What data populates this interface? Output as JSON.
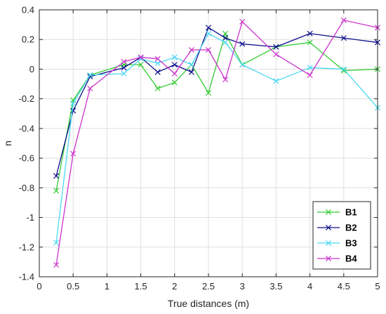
{
  "chart_data": {
    "type": "line",
    "title": "",
    "xlabel": "True distances (m)",
    "ylabel": "n",
    "xlim": [
      0,
      5
    ],
    "ylim": [
      -1.4,
      0.4
    ],
    "xticks": [
      0,
      0.5,
      1,
      1.5,
      2,
      2.5,
      3,
      3.5,
      4,
      4.5,
      5
    ],
    "yticks": [
      -1.4,
      -1.2,
      -1,
      -0.8,
      -0.6,
      -0.4,
      -0.2,
      0,
      0.2,
      0.4
    ],
    "xtick_labels": [
      "0",
      "0.5",
      "1",
      "1.5",
      "2",
      "2.5",
      "3",
      "3.5",
      "4",
      "4.5",
      "5"
    ],
    "ytick_labels": [
      "-1.4",
      "-1.2",
      "-1",
      "-0.8",
      "-0.6",
      "-0.4",
      "-0.2",
      "0",
      "0.2",
      "0.4"
    ],
    "grid": true,
    "legend_position": "bottom-right",
    "marker": "x",
    "series": [
      {
        "name": "B1",
        "color": "#33cc33",
        "x": [
          0.25,
          0.5,
          0.75,
          1.25,
          1.5,
          1.75,
          2,
          2.25,
          2.5,
          2.75,
          3,
          3.5,
          4,
          4.5,
          5
        ],
        "y": [
          -0.82,
          -0.21,
          -0.04,
          0.03,
          0.03,
          -0.13,
          -0.09,
          0.03,
          -0.16,
          0.24,
          0.03,
          0.15,
          0.18,
          -0.01,
          0.0
        ]
      },
      {
        "name": "B2",
        "color": "#0d0d8c",
        "x": [
          0.25,
          0.5,
          0.75,
          1.25,
          1.5,
          1.75,
          2,
          2.25,
          2.5,
          2.75,
          3,
          3.5,
          4,
          4.5,
          5
        ],
        "y": [
          -0.72,
          -0.28,
          -0.05,
          0.01,
          0.08,
          -0.02,
          0.03,
          -0.02,
          0.28,
          0.21,
          0.17,
          0.15,
          0.24,
          0.21,
          0.18
        ]
      },
      {
        "name": "B3",
        "color": "#4cd8f0",
        "x": [
          0.25,
          0.5,
          0.75,
          1.25,
          1.5,
          1.75,
          2,
          2.25,
          2.5,
          2.75,
          3,
          3.5,
          4,
          4.5,
          5
        ],
        "y": [
          -1.17,
          -0.23,
          -0.04,
          -0.03,
          0.07,
          0.04,
          0.08,
          0.03,
          0.24,
          0.18,
          0.03,
          -0.08,
          0.01,
          0.0,
          -0.26
        ]
      },
      {
        "name": "B4",
        "color": "#cc33cc",
        "x": [
          0.25,
          0.5,
          0.75,
          1.25,
          1.5,
          1.75,
          2,
          2.25,
          2.5,
          2.75,
          3,
          3.5,
          4,
          4.5,
          5
        ],
        "y": [
          -1.32,
          -0.57,
          -0.13,
          0.05,
          0.08,
          0.07,
          -0.03,
          0.13,
          0.13,
          -0.07,
          0.32,
          0.1,
          -0.04,
          0.33,
          0.28
        ]
      }
    ]
  }
}
